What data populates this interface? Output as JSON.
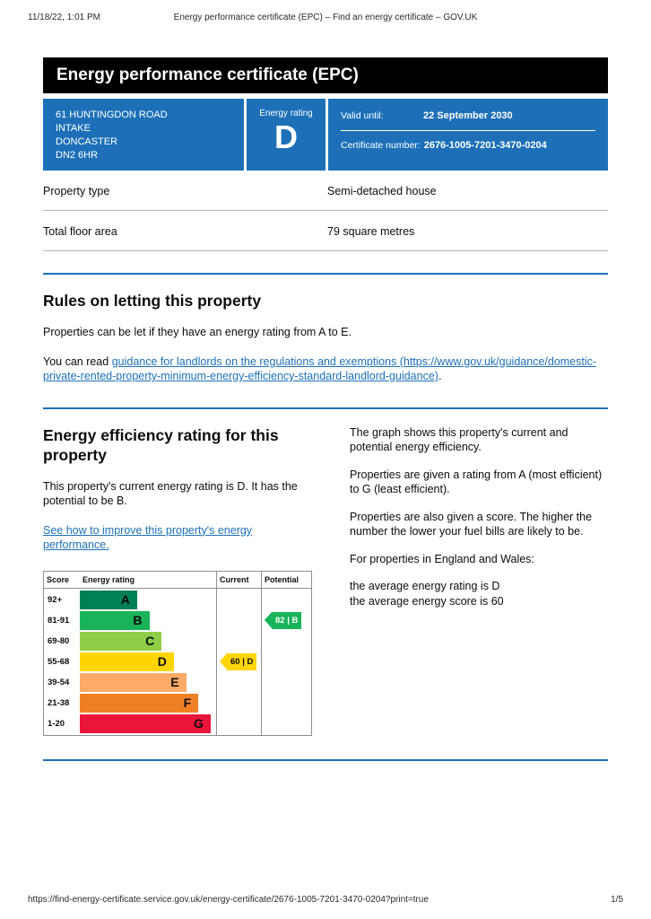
{
  "theme": {
    "gov_blue": "#1d70b8",
    "banner_bg": "#000000",
    "text": "#0b0c0c",
    "border_gray": "#b1b4b6",
    "link": "#1d70b8"
  },
  "print_header": {
    "timestamp": "11/18/22, 1:01 PM",
    "page_title": "Energy performance certificate (EPC) – Find an energy certificate – GOV.UK"
  },
  "banner": {
    "title": "Energy performance certificate (EPC)"
  },
  "summary_panel": {
    "address_lines": [
      "61 HUNTINGDON ROAD",
      "INTAKE",
      "DONCASTER",
      "DN2 6HR"
    ],
    "energy_rating_label": "Energy rating",
    "energy_rating_value": "D",
    "valid_until_label": "Valid until:",
    "valid_until_value": "22 September 2030",
    "certificate_number_label": "Certificate number:",
    "certificate_number_value": "2676-1005-7201-3470-0204"
  },
  "property_facts": {
    "rows": [
      {
        "label": "Property type",
        "value": "Semi-detached house"
      },
      {
        "label": "Total floor area",
        "value": "79 square metres"
      }
    ]
  },
  "letting_rules": {
    "heading": "Rules on letting this property",
    "intro": "Properties can be let if they have an energy rating from A to E.",
    "read_prefix": "You can read ",
    "guidance_link": "guidance for landlords on the regulations and exemptions (https://www.gov.uk/guidance/domestic-private-rented-property-minimum-energy-efficiency-standard-landlord-guidance)",
    "read_suffix": "."
  },
  "efficiency_section": {
    "heading": "Energy efficiency rating for this property",
    "current_rating_text": "This property's current energy rating is D. It has the potential to be B.",
    "improve_link": "See how to improve this property's energy performance.",
    "graph_intro": "The graph shows this property's current and potential energy efficiency.",
    "rating_explainer": "Properties are given a rating from A (most efficient) to G (least efficient).",
    "score_explainer": "Properties are also given a score. The higher the number the lower your fuel bills are likely to be.",
    "averages_intro": "For properties in England and Wales:",
    "average_rating_line": "the average energy rating is D",
    "average_score_line": "the average energy score is 60"
  },
  "chart_data": {
    "type": "bar",
    "title": "Energy efficiency rating chart",
    "columns": [
      "Score",
      "Energy rating",
      "Current",
      "Potential"
    ],
    "bands": [
      {
        "score": "92+",
        "letter": "A",
        "color": "#008054",
        "width_pct": 42
      },
      {
        "score": "81-91",
        "letter": "B",
        "color": "#19b459",
        "width_pct": 51
      },
      {
        "score": "69-80",
        "letter": "C",
        "color": "#8dce46",
        "width_pct": 60
      },
      {
        "score": "55-68",
        "letter": "D",
        "color": "#ffd500",
        "width_pct": 69
      },
      {
        "score": "39-54",
        "letter": "E",
        "color": "#fcaa65",
        "width_pct": 78
      },
      {
        "score": "21-38",
        "letter": "F",
        "color": "#ef8023",
        "width_pct": 87
      },
      {
        "score": "1-20",
        "letter": "G",
        "color": "#e9153b",
        "width_pct": 96
      }
    ],
    "current": {
      "score": 60,
      "letter": "D",
      "label": "60 | D",
      "band_index": 3,
      "color": "#ffd500",
      "text_color": "#0b0c0c"
    },
    "potential": {
      "score": 82,
      "letter": "B",
      "label": "82 | B",
      "band_index": 1,
      "color": "#19b459",
      "text_color": "#ffffff"
    }
  },
  "footer": {
    "url": "https://find-energy-certificate.service.gov.uk/energy-certificate/2676-1005-7201-3470-0204?print=true",
    "page_indicator": "1/5"
  }
}
